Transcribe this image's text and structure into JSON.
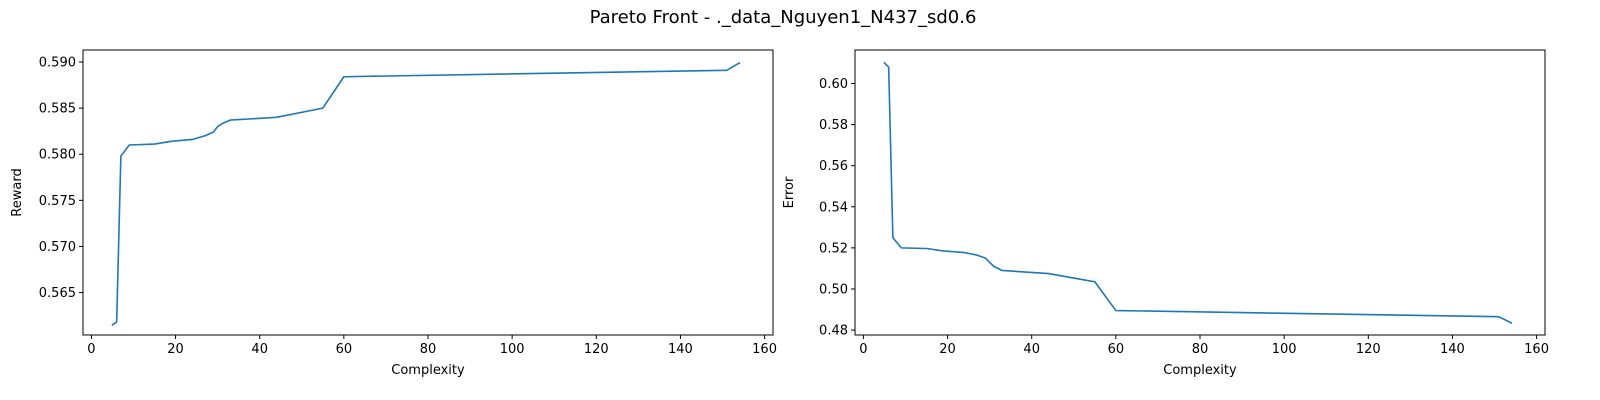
{
  "figure": {
    "suptitle": "Pareto Front - ._data_Nguyen1_N437_sd0.6",
    "line_color": "#1f77b4"
  },
  "chart_data": [
    {
      "type": "line",
      "title": "",
      "xlabel": "Complexity",
      "ylabel": "Reward",
      "xlim": [
        -2,
        162
      ],
      "ylim": [
        0.5604,
        0.5913
      ],
      "xticks": [
        0,
        20,
        40,
        60,
        80,
        100,
        120,
        140,
        160
      ],
      "yticks": [
        0.565,
        0.57,
        0.575,
        0.58,
        0.585,
        0.59
      ],
      "ytick_labels": [
        "0.565",
        "0.570",
        "0.575",
        "0.580",
        "0.585",
        "0.590"
      ],
      "grid": false,
      "series": [
        {
          "x": [
            5,
            6,
            7,
            9,
            15,
            19,
            24,
            27,
            29,
            30,
            31,
            33,
            44,
            55,
            60,
            151,
            154
          ],
          "y": [
            0.5615,
            0.5618,
            0.5798,
            0.581,
            0.5811,
            0.5814,
            0.5816,
            0.582,
            0.5824,
            0.583,
            0.5833,
            0.5837,
            0.584,
            0.585,
            0.5884,
            0.5891,
            0.5899
          ]
        }
      ]
    },
    {
      "type": "line",
      "title": "",
      "xlabel": "Complexity",
      "ylabel": "Error",
      "xlim": [
        -2,
        162
      ],
      "ylim": [
        0.4776,
        0.6163
      ],
      "xticks": [
        0,
        20,
        40,
        60,
        80,
        100,
        120,
        140,
        160
      ],
      "yticks": [
        0.48,
        0.5,
        0.52,
        0.54,
        0.56,
        0.58,
        0.6
      ],
      "ytick_labels": [
        "0.48",
        "0.50",
        "0.52",
        "0.54",
        "0.56",
        "0.58",
        "0.60"
      ],
      "grid": false,
      "series": [
        {
          "x": [
            5,
            6,
            7,
            9,
            15,
            19,
            24,
            27,
            29,
            30,
            31,
            33,
            44,
            55,
            60,
            151,
            154
          ],
          "y": [
            0.61,
            0.608,
            0.525,
            0.52,
            0.5197,
            0.5185,
            0.5177,
            0.5165,
            0.515,
            0.513,
            0.511,
            0.509,
            0.5075,
            0.5035,
            0.4895,
            0.4865,
            0.4835
          ]
        }
      ]
    }
  ]
}
